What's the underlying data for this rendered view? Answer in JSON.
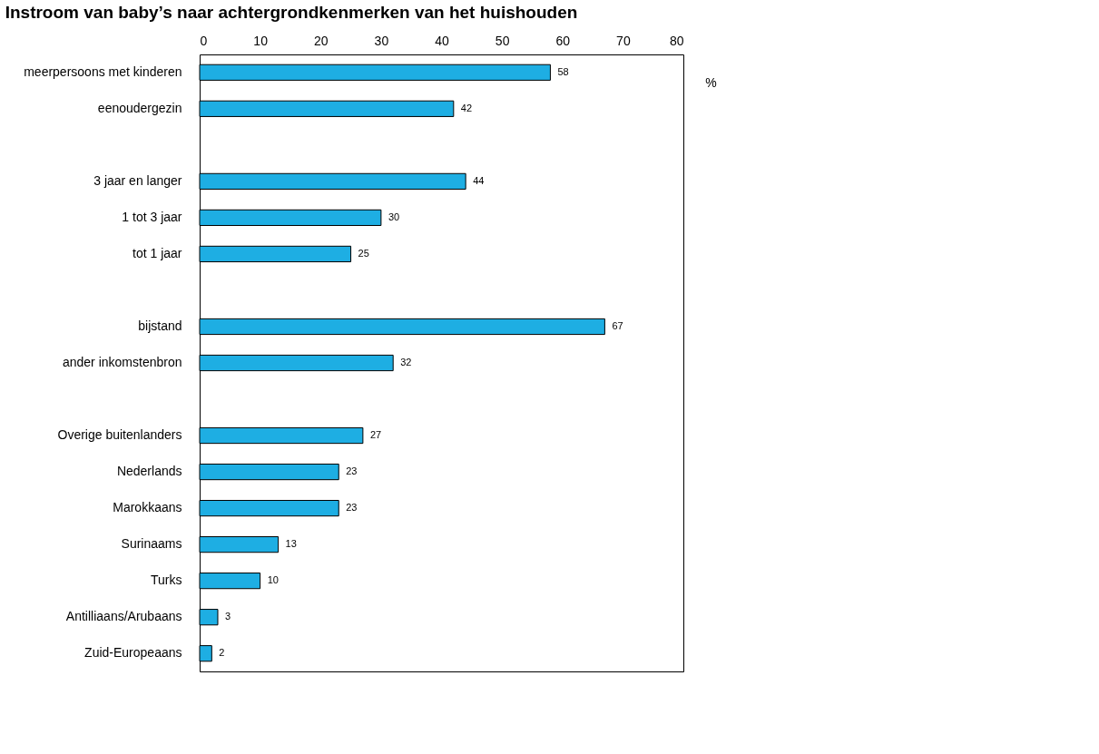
{
  "chart_data": {
    "type": "bar",
    "orientation": "horizontal",
    "title": "Instroom van baby’s naar achtergrondkenmerken van het huishouden",
    "xlabel": "%",
    "categories": [
      "meerpersoons met kinderen",
      "eenoudergezin",
      null,
      "3 jaar en langer",
      "1 tot 3 jaar",
      "tot 1 jaar",
      null,
      "bijstand",
      "ander inkomstenbron",
      null,
      "Overige buitenlanders",
      "Nederlands",
      "Marokkaans",
      "Surinaams",
      "Turks",
      "Antilliaans/Arubaans",
      "Zuid-Europeaans"
    ],
    "values": [
      58,
      42,
      null,
      44,
      30,
      25,
      null,
      67,
      32,
      null,
      27,
      23,
      23,
      13,
      10,
      3,
      2
    ],
    "color": "#1eaee3",
    "xlim": [
      0,
      80
    ],
    "xticks": [
      0,
      10,
      20,
      30,
      40,
      50,
      60,
      70,
      80
    ],
    "data_labels": true,
    "grid": false
  }
}
